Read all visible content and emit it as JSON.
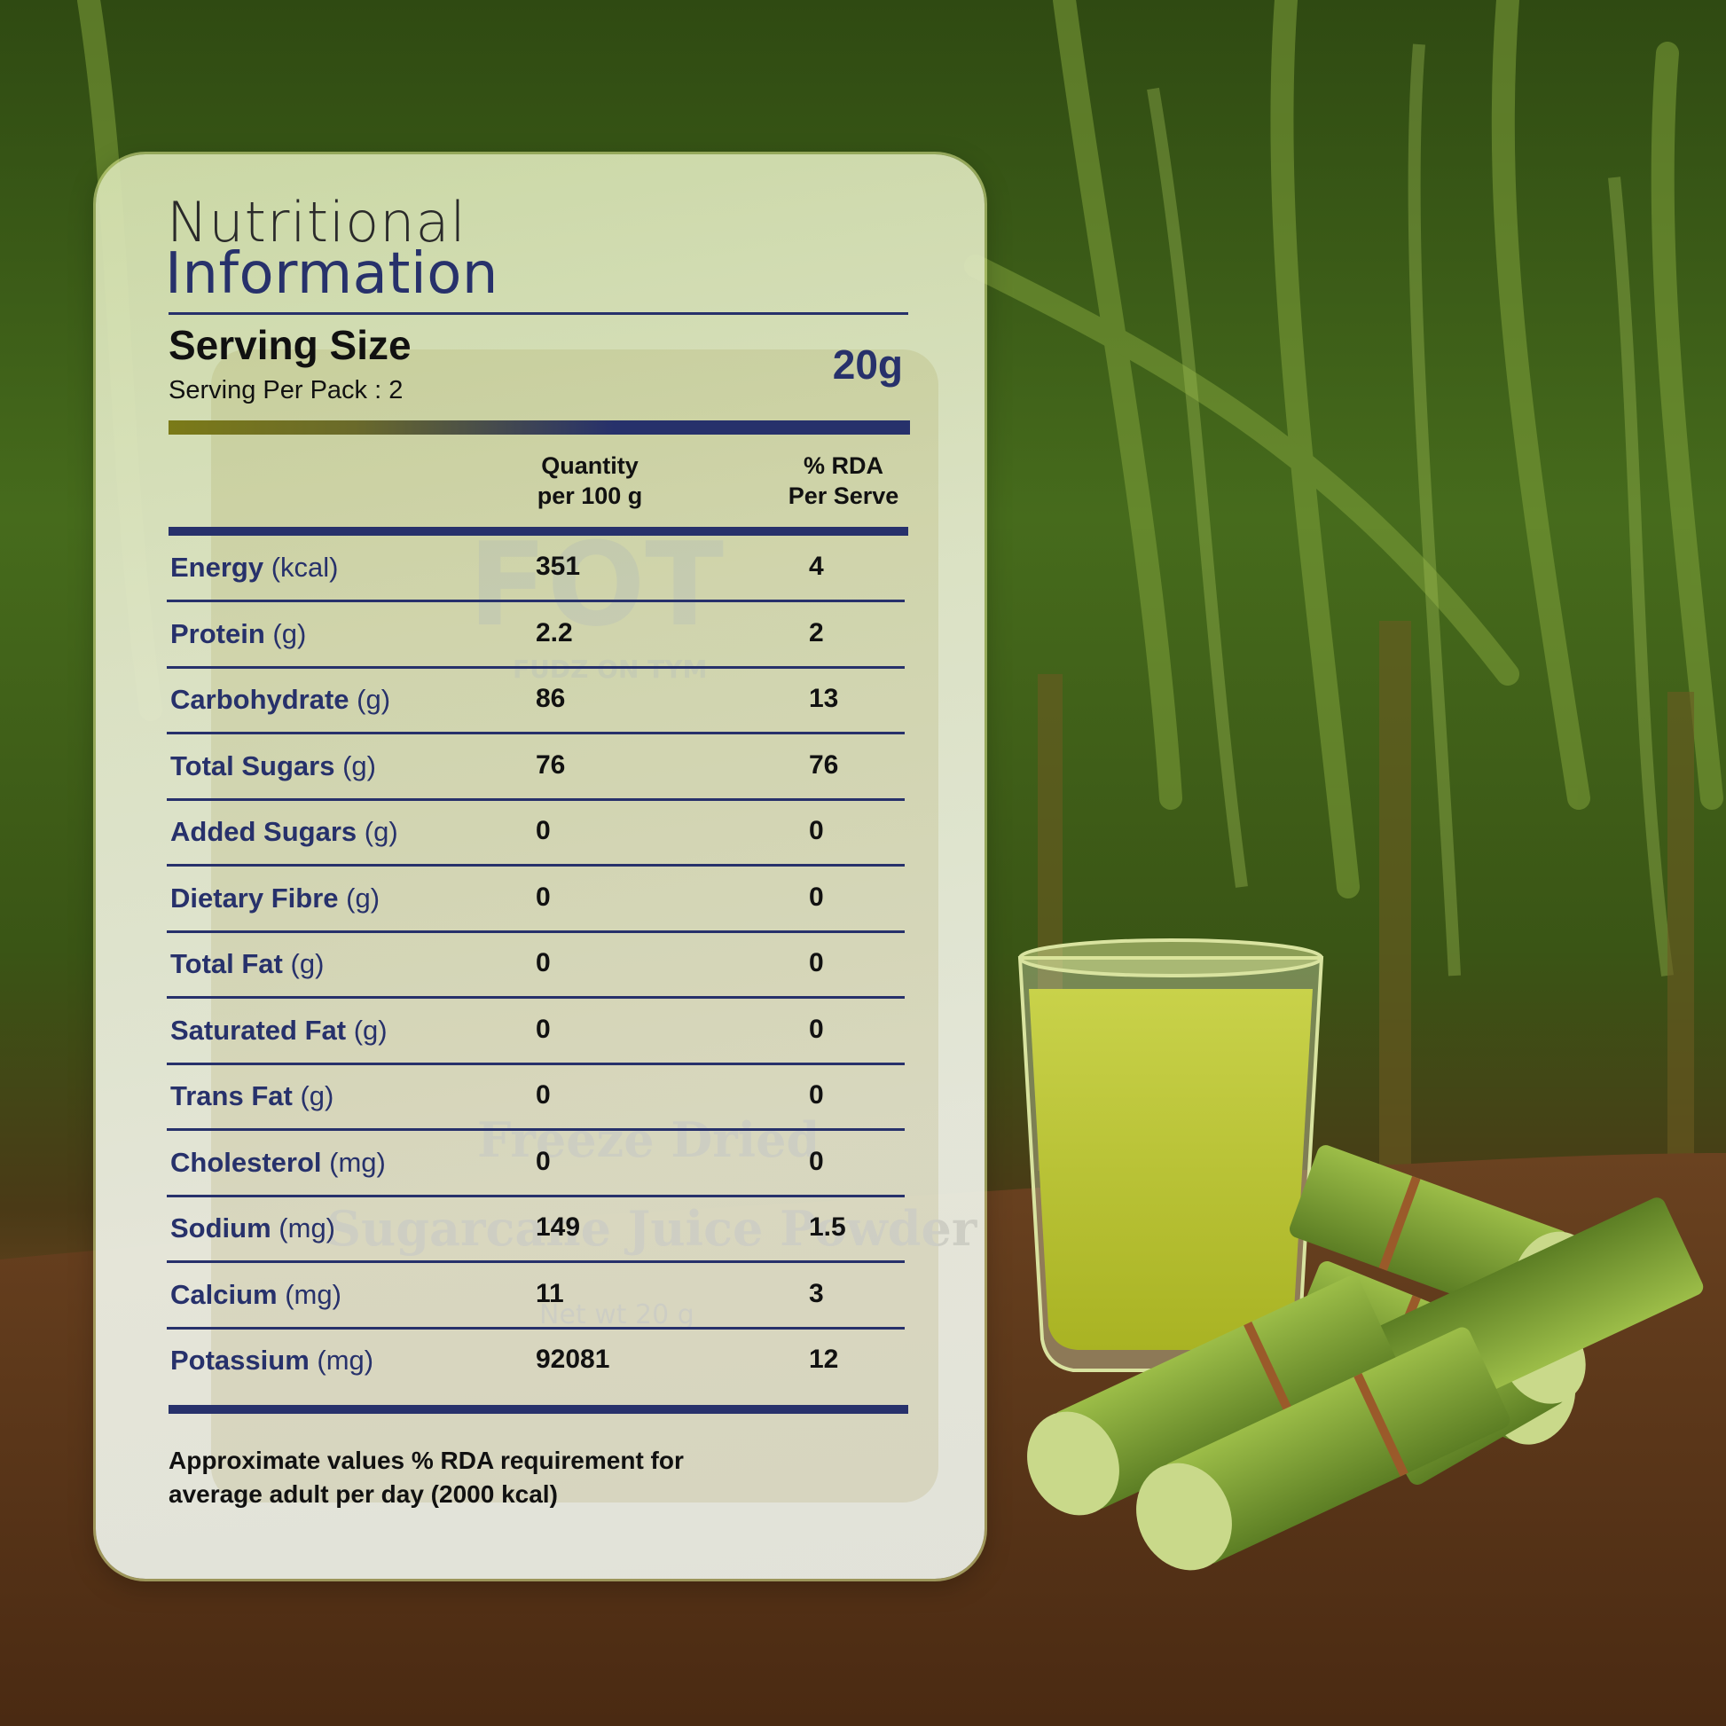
{
  "panel": {
    "title_line1": "Nutritional",
    "title_line2": "Information",
    "serving_size_label": "Serving Size",
    "serving_per_pack": "Serving Per Pack : 2",
    "serving_size_value": "20g",
    "column_quantity_line1": "Quantity",
    "column_quantity_line2": "per 100 g",
    "column_rda_line1": "% RDA",
    "column_rda_line2": "Per Serve",
    "rows": [
      {
        "name": "Energy",
        "unit": "(kcal)",
        "quantity": "351",
        "rda": "4"
      },
      {
        "name": "Protein",
        "unit": "(g)",
        "quantity": "2.2",
        "rda": "2"
      },
      {
        "name": "Carbohydrate",
        "unit": "(g)",
        "quantity": "86",
        "rda": "13"
      },
      {
        "name": "Total Sugars",
        "unit": "(g)",
        "quantity": "76",
        "rda": "76"
      },
      {
        "name": "Added Sugars",
        "unit": "(g)",
        "quantity": "0",
        "rda": "0"
      },
      {
        "name": "Dietary Fibre",
        "unit": "(g)",
        "quantity": "0",
        "rda": "0"
      },
      {
        "name": "Total Fat",
        "unit": "(g)",
        "quantity": "0",
        "rda": "0"
      },
      {
        "name": "Saturated Fat",
        "unit": "(g)",
        "quantity": "0",
        "rda": "0"
      },
      {
        "name": "Trans Fat",
        "unit": "(g)",
        "quantity": "0",
        "rda": "0"
      },
      {
        "name": "Cholesterol",
        "unit": "(mg)",
        "quantity": "0",
        "rda": "0"
      },
      {
        "name": "Sodium",
        "unit": "(mg)",
        "quantity": "149",
        "rda": "1.5"
      },
      {
        "name": "Calcium",
        "unit": "(mg)",
        "quantity": "11",
        "rda": "3"
      },
      {
        "name": "Potassium",
        "unit": "(mg)",
        "quantity": "92081",
        "rda": "12"
      }
    ],
    "footnote_line1": "Approximate values % RDA requirement for",
    "footnote_line2": "average adult per day (2000 kcal)"
  },
  "watermark": {
    "brand": "FOT",
    "brand_sub": "FUDZ ON TYM",
    "product_line1": "Freeze Dried",
    "product_line2": "Sugarcane Juice Powder",
    "net_weight": "Net wt 20 g"
  },
  "colors": {
    "accent_navy": "#27316b",
    "accent_olive": "#7b7a18",
    "juice": "#b7c22c",
    "cane": "#86a53a"
  }
}
